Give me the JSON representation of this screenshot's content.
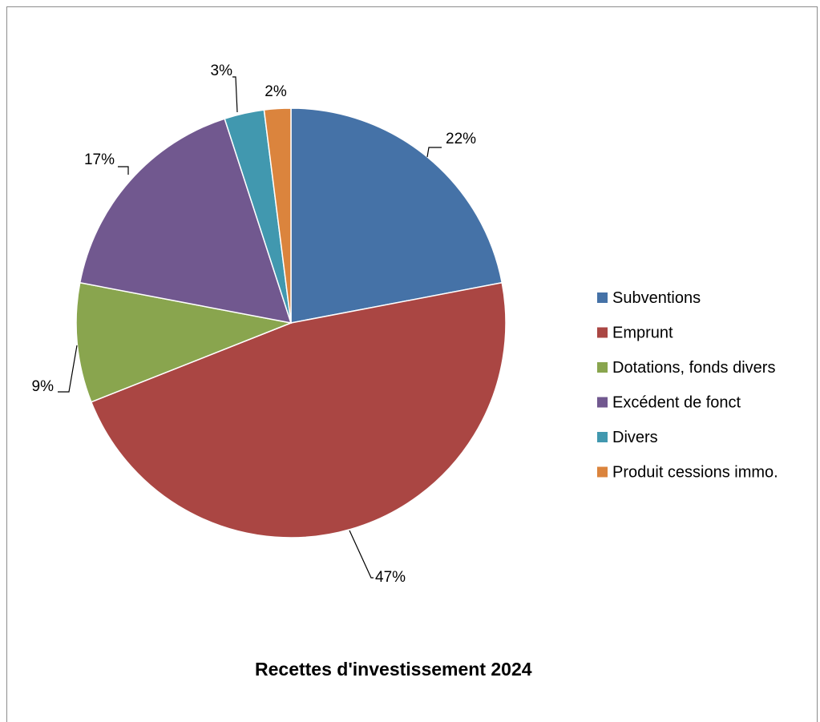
{
  "chart_data": {
    "type": "pie",
    "title": "Recettes d'investissement 2024",
    "slices": [
      {
        "label": "Subventions",
        "value": 22,
        "data_label": "22%",
        "color": "#4572a7"
      },
      {
        "label": "Emprunt",
        "value": 47,
        "data_label": "47%",
        "color": "#aa4643"
      },
      {
        "label": "Dotations, fonds divers",
        "value": 9,
        "data_label": "9%",
        "color": "#89a54e"
      },
      {
        "label": "Excédent de fonct",
        "value": 17,
        "data_label": "17%",
        "color": "#71588f"
      },
      {
        "label": "Divers",
        "value": 3,
        "data_label": "3%",
        "color": "#4198af"
      },
      {
        "label": "Produit cessions immo.",
        "value": 2,
        "data_label": "2%",
        "color": "#db843d"
      }
    ],
    "legend_position": "right"
  }
}
